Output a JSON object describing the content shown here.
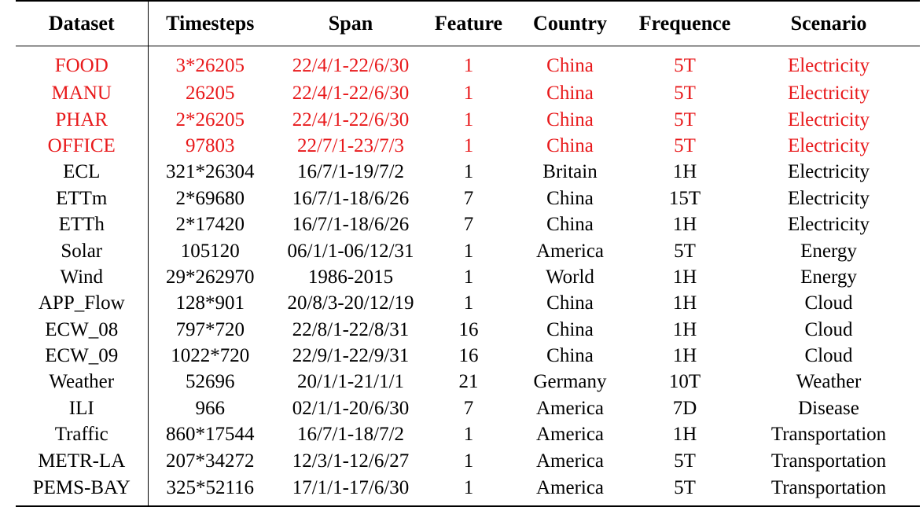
{
  "table": {
    "headers": [
      "Dataset",
      "Timesteps",
      "Span",
      "Feature",
      "Country",
      "Frequence",
      "Scenario"
    ],
    "highlight_color": "#e8191b",
    "rows": [
      {
        "highlight": true,
        "cells": [
          "FOOD",
          "3*26205",
          "22/4/1-22/6/30",
          "1",
          "China",
          "5T",
          "Electricity"
        ]
      },
      {
        "highlight": true,
        "cells": [
          "MANU",
          "26205",
          "22/4/1-22/6/30",
          "1",
          "China",
          "5T",
          "Electricity"
        ]
      },
      {
        "highlight": true,
        "cells": [
          "PHAR",
          "2*26205",
          "22/4/1-22/6/30",
          "1",
          "China",
          "5T",
          "Electricity"
        ]
      },
      {
        "highlight": true,
        "cells": [
          "OFFICE",
          "97803",
          "22/7/1-23/7/3",
          "1",
          "China",
          "5T",
          "Electricity"
        ]
      },
      {
        "highlight": false,
        "cells": [
          "ECL",
          "321*26304",
          "16/7/1-19/7/2",
          "1",
          "Britain",
          "1H",
          "Electricity"
        ]
      },
      {
        "highlight": false,
        "cells": [
          "ETTm",
          "2*69680",
          "16/7/1-18/6/26",
          "7",
          "China",
          "15T",
          "Electricity"
        ]
      },
      {
        "highlight": false,
        "cells": [
          "ETTh",
          "2*17420",
          "16/7/1-18/6/26",
          "7",
          "China",
          "1H",
          "Electricity"
        ]
      },
      {
        "highlight": false,
        "cells": [
          "Solar",
          "105120",
          "06/1/1-06/12/31",
          "1",
          "America",
          "5T",
          "Energy"
        ]
      },
      {
        "highlight": false,
        "cells": [
          "Wind",
          "29*262970",
          "1986-2015",
          "1",
          "World",
          "1H",
          "Energy"
        ]
      },
      {
        "highlight": false,
        "cells": [
          "APP_Flow",
          "128*901",
          "20/8/3-20/12/19",
          "1",
          "China",
          "1H",
          "Cloud"
        ]
      },
      {
        "highlight": false,
        "cells": [
          "ECW_08",
          "797*720",
          "22/8/1-22/8/31",
          "16",
          "China",
          "1H",
          "Cloud"
        ]
      },
      {
        "highlight": false,
        "cells": [
          "ECW_09",
          "1022*720",
          "22/9/1-22/9/31",
          "16",
          "China",
          "1H",
          "Cloud"
        ]
      },
      {
        "highlight": false,
        "cells": [
          "Weather",
          "52696",
          "20/1/1-21/1/1",
          "21",
          "Germany",
          "10T",
          "Weather"
        ]
      },
      {
        "highlight": false,
        "cells": [
          "ILI",
          "966",
          "02/1/1-20/6/30",
          "7",
          "America",
          "7D",
          "Disease"
        ]
      },
      {
        "highlight": false,
        "cells": [
          "Traffic",
          "860*17544",
          "16/7/1-18/7/2",
          "1",
          "America",
          "1H",
          "Transportation"
        ]
      },
      {
        "highlight": false,
        "cells": [
          "METR-LA",
          "207*34272",
          "12/3/1-12/6/27",
          "1",
          "America",
          "5T",
          "Transportation"
        ]
      },
      {
        "highlight": false,
        "cells": [
          "PEMS-BAY",
          "325*52116",
          "17/1/1-17/6/30",
          "1",
          "America",
          "5T",
          "Transportation"
        ]
      }
    ]
  }
}
